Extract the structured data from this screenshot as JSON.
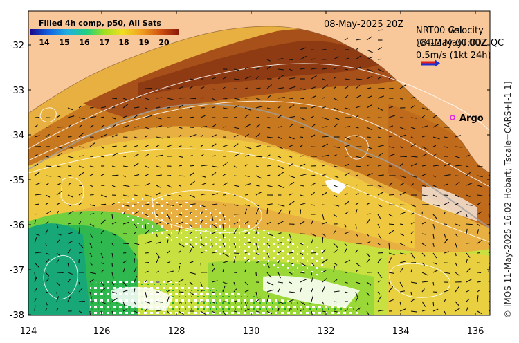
{
  "colorbar": {
    "title": "Filled 4h comp, p50, All Sats",
    "ticks": [
      "14",
      "15",
      "16",
      "17",
      "18",
      "19",
      "20"
    ]
  },
  "header": {
    "date": "08-May-2025 20Z",
    "legend_line1": "NRT00 Gsl",
    "legend_line1_overlap": "velocity",
    "legend_line2": "(04-May 00:00Z QC",
    "legend_line2_overlap": "(8-12 May) 00Z",
    "legend_line3": "0.5m/s (1kt 24h)"
  },
  "argo": {
    "label": "Argo"
  },
  "axes": {
    "lat_ticks": [
      "-32",
      "-33",
      "-34",
      "-35",
      "-36",
      "-37",
      "-38"
    ],
    "lon_ticks": [
      "124",
      "126",
      "128",
      "130",
      "132",
      "134",
      "136"
    ]
  },
  "credit": "© IMOS 11-May-2025 16:02 Hobart; Tscale=CARS+[-1 1]",
  "colors": {
    "land": "#f8c89a",
    "sea_warm": "#b85a18",
    "sea_mid": "#e0a23a",
    "sea_cool": "#2fc84a",
    "contour": "#ffffff",
    "argo": "#e020e0"
  }
}
